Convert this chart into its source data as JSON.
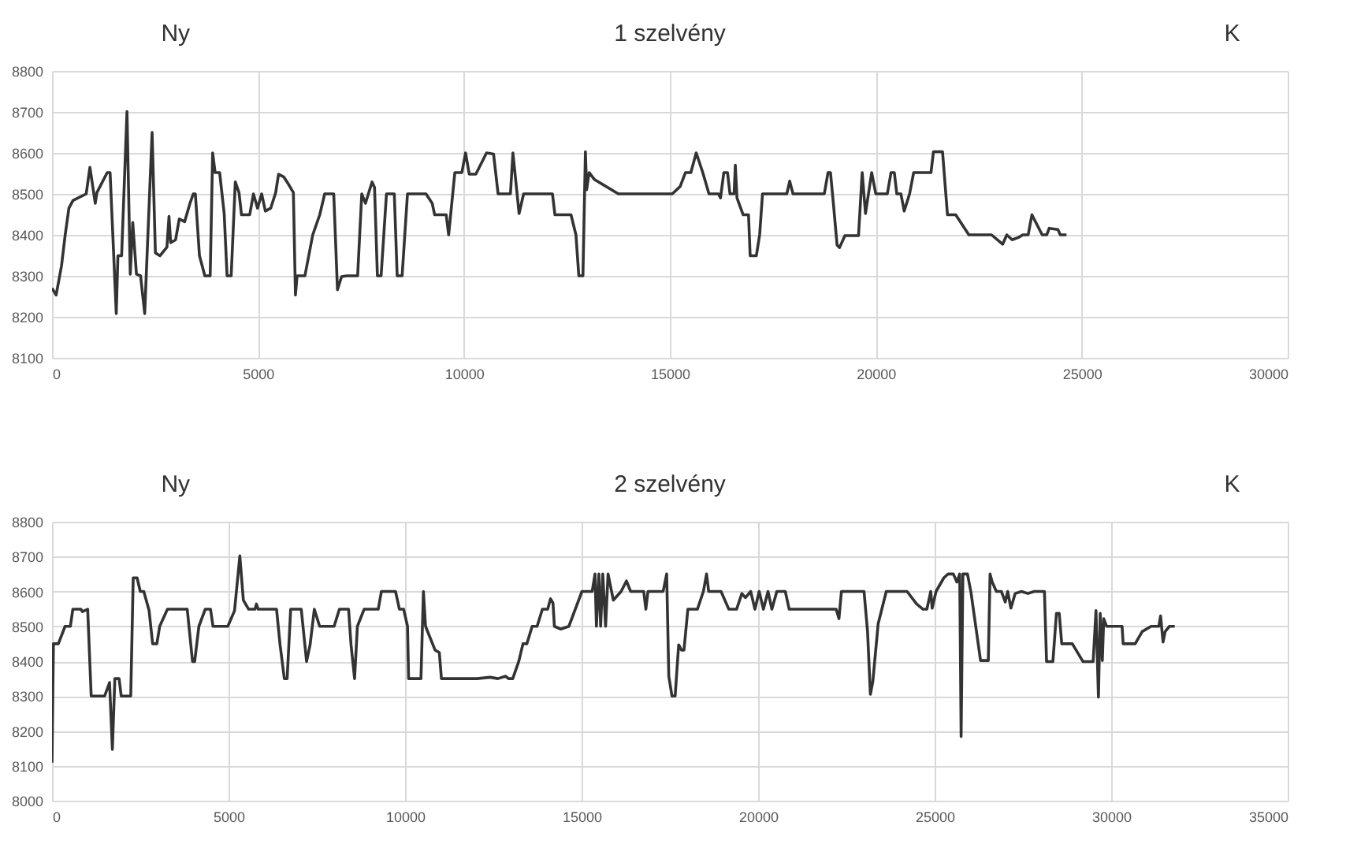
{
  "chart_data": [
    {
      "type": "line",
      "title": "1 szelvény",
      "annotations": [
        "Ny",
        "K"
      ],
      "color": "#333333",
      "grid": true,
      "xlim": [
        0,
        30000
      ],
      "xticks": [
        0,
        5000,
        10000,
        15000,
        20000,
        25000,
        30000
      ],
      "ylim": [
        8100,
        8800
      ],
      "yticks": [
        8100,
        8200,
        8300,
        8400,
        8500,
        8600,
        8700,
        8800
      ],
      "x": [
        0,
        100,
        230,
        320,
        410,
        510,
        830,
        920,
        1050,
        1090,
        1340,
        1410,
        1560,
        1600,
        1690,
        1820,
        1900,
        1960,
        2050,
        2150,
        2250,
        2430,
        2510,
        2620,
        2790,
        2840,
        2880,
        3000,
        3090,
        3220,
        3350,
        3430,
        3480,
        3580,
        3710,
        3840,
        3900,
        3960,
        4070,
        4180,
        4250,
        4350,
        4450,
        4540,
        4600,
        4800,
        4890,
        4990,
        5090,
        5180,
        5310,
        5430,
        5500,
        5630,
        5750,
        5860,
        5910,
        5950,
        6140,
        6330,
        6500,
        6620,
        6840,
        6930,
        7030,
        7160,
        7420,
        7520,
        7610,
        7770,
        7830,
        7900,
        7990,
        8120,
        8310,
        8380,
        8500,
        8630,
        9080,
        9230,
        9290,
        9570,
        9630,
        9780,
        9950,
        10040,
        10130,
        10290,
        10550,
        10720,
        10830,
        11130,
        11190,
        11340,
        11450,
        12150,
        12210,
        12600,
        12720,
        12790,
        12890,
        12950,
        12980,
        13040,
        13170,
        13750,
        15060,
        15250,
        15380,
        15510,
        15640,
        15800,
        15950,
        16180,
        16230,
        16310,
        16400,
        16460,
        16560,
        16590,
        16630,
        16780,
        16910,
        16950,
        17100,
        17180,
        17250,
        17840,
        17910,
        17990,
        18750,
        18840,
        18900,
        18970,
        19060,
        19120,
        19250,
        19580,
        19670,
        19750,
        19900,
        20000,
        20280,
        20370,
        20450,
        20510,
        20610,
        20690,
        20820,
        20920,
        21340,
        21400,
        21620,
        21740,
        21940,
        22260,
        22810,
        23080,
        23180,
        23310,
        23470,
        23570,
        23700,
        23790,
        24040,
        24150,
        24210,
        24420,
        24480,
        24630
      ],
      "values": [
        8270,
        8253,
        8324,
        8400,
        8465,
        8484,
        8500,
        8565,
        8477,
        8503,
        8552,
        8552,
        8208,
        8349,
        8349,
        8701,
        8304,
        8430,
        8304,
        8300,
        8208,
        8650,
        8356,
        8349,
        8370,
        8445,
        8381,
        8388,
        8439,
        8432,
        8477,
        8500,
        8500,
        8349,
        8300,
        8300,
        8600,
        8552,
        8552,
        8452,
        8300,
        8300,
        8529,
        8503,
        8449,
        8449,
        8500,
        8465,
        8500,
        8458,
        8465,
        8503,
        8548,
        8541,
        8522,
        8503,
        8253,
        8300,
        8300,
        8400,
        8449,
        8500,
        8500,
        8266,
        8298,
        8300,
        8300,
        8500,
        8477,
        8529,
        8516,
        8300,
        8300,
        8500,
        8500,
        8300,
        8300,
        8500,
        8500,
        8477,
        8449,
        8449,
        8400,
        8552,
        8552,
        8600,
        8548,
        8548,
        8600,
        8597,
        8500,
        8500,
        8600,
        8452,
        8500,
        8500,
        8449,
        8449,
        8400,
        8300,
        8300,
        8603,
        8510,
        8552,
        8535,
        8500,
        8500,
        8518,
        8552,
        8552,
        8600,
        8552,
        8500,
        8500,
        8490,
        8552,
        8552,
        8500,
        8500,
        8570,
        8490,
        8449,
        8449,
        8349,
        8349,
        8400,
        8500,
        8500,
        8531,
        8500,
        8500,
        8552,
        8552,
        8477,
        8375,
        8369,
        8398,
        8398,
        8552,
        8452,
        8552,
        8500,
        8500,
        8552,
        8552,
        8500,
        8500,
        8458,
        8500,
        8552,
        8552,
        8603,
        8603,
        8449,
        8449,
        8400,
        8400,
        8377,
        8400,
        8388,
        8394,
        8400,
        8400,
        8449,
        8400,
        8400,
        8416,
        8413,
        8400,
        8400
      ]
    },
    {
      "type": "line",
      "title": "2 szelvény",
      "annotations": [
        "Ny",
        "K"
      ],
      "color": "#333333",
      "grid": true,
      "xlim": [
        0,
        35000
      ],
      "xticks": [
        0,
        5000,
        10000,
        15000,
        20000,
        25000,
        30000,
        35000
      ],
      "ylim": [
        8000,
        8800
      ],
      "yticks": [
        8000,
        8100,
        8200,
        8300,
        8400,
        8500,
        8600,
        8700,
        8800
      ],
      "x": [
        0,
        40,
        180,
        370,
        520,
        590,
        820,
        860,
        1010,
        1110,
        1490,
        1630,
        1710,
        1780,
        1900,
        1960,
        2230,
        2300,
        2410,
        2500,
        2600,
        2750,
        2850,
        2970,
        3050,
        3270,
        3830,
        3980,
        4040,
        4160,
        4340,
        4490,
        4560,
        4980,
        5170,
        5320,
        5420,
        5570,
        5750,
        5790,
        5840,
        6360,
        6460,
        6580,
        6660,
        6760,
        7060,
        7210,
        7310,
        7430,
        7580,
        7990,
        8140,
        8400,
        8470,
        8570,
        8650,
        8840,
        9240,
        9330,
        9730,
        9840,
        9960,
        10070,
        10100,
        10450,
        10520,
        10580,
        10850,
        10970,
        11030,
        12040,
        12410,
        12630,
        12850,
        12930,
        13050,
        13220,
        13340,
        13450,
        13600,
        13740,
        13890,
        14040,
        14120,
        14190,
        14230,
        14410,
        14640,
        15010,
        15300,
        15380,
        15420,
        15490,
        15540,
        15600,
        15680,
        15750,
        15900,
        16120,
        16270,
        16390,
        16760,
        16820,
        16880,
        17310,
        17410,
        17470,
        17560,
        17650,
        17750,
        17830,
        17900,
        18010,
        18280,
        18450,
        18540,
        18600,
        18950,
        19170,
        19390,
        19540,
        19640,
        19790,
        19910,
        20030,
        20150,
        20280,
        20390,
        20530,
        20770,
        20880,
        21100,
        22210,
        22290,
        22360,
        23000,
        23100,
        23180,
        23250,
        23400,
        23630,
        24220,
        24490,
        24670,
        24780,
        24890,
        24930,
        25040,
        25260,
        25380,
        25530,
        25630,
        25710,
        25750,
        25800,
        25930,
        26030,
        26300,
        26520,
        26570,
        26630,
        26750,
        26890,
        27000,
        27070,
        27160,
        27280,
        27460,
        27640,
        27820,
        28110,
        28170,
        28350,
        28450,
        28530,
        28600,
        28900,
        29200,
        29490,
        29570,
        29640,
        29690,
        29750,
        29790,
        29870,
        30310,
        30340,
        30680,
        30880,
        31130,
        31350,
        31400,
        31470,
        31530,
        31650,
        31800
      ],
      "values": [
        8109,
        8450,
        8450,
        8500,
        8500,
        8549,
        8549,
        8542,
        8549,
        8300,
        8300,
        8339,
        8147,
        8350,
        8350,
        8300,
        8300,
        8639,
        8639,
        8600,
        8600,
        8545,
        8450,
        8450,
        8500,
        8549,
        8549,
        8399,
        8399,
        8500,
        8549,
        8549,
        8500,
        8500,
        8545,
        8702,
        8575,
        8549,
        8549,
        8564,
        8549,
        8549,
        8447,
        8350,
        8350,
        8549,
        8549,
        8399,
        8447,
        8549,
        8500,
        8500,
        8549,
        8549,
        8447,
        8350,
        8500,
        8549,
        8549,
        8600,
        8600,
        8549,
        8549,
        8500,
        8350,
        8350,
        8600,
        8500,
        8432,
        8425,
        8350,
        8350,
        8354,
        8350,
        8357,
        8350,
        8350,
        8399,
        8450,
        8450,
        8500,
        8500,
        8549,
        8549,
        8579,
        8567,
        8500,
        8492,
        8500,
        8600,
        8600,
        8650,
        8500,
        8650,
        8500,
        8650,
        8500,
        8650,
        8575,
        8600,
        8630,
        8600,
        8600,
        8549,
        8600,
        8600,
        8650,
        8357,
        8300,
        8300,
        8447,
        8432,
        8432,
        8549,
        8549,
        8600,
        8650,
        8600,
        8600,
        8549,
        8549,
        8594,
        8582,
        8600,
        8549,
        8600,
        8549,
        8600,
        8549,
        8600,
        8600,
        8549,
        8549,
        8549,
        8522,
        8600,
        8600,
        8485,
        8305,
        8342,
        8507,
        8600,
        8600,
        8564,
        8549,
        8549,
        8600,
        8552,
        8600,
        8639,
        8650,
        8650,
        8627,
        8650,
        8184,
        8650,
        8650,
        8597,
        8402,
        8402,
        8650,
        8627,
        8600,
        8600,
        8570,
        8600,
        8552,
        8594,
        8600,
        8594,
        8600,
        8600,
        8399,
        8399,
        8537,
        8537,
        8450,
        8450,
        8399,
        8399,
        8545,
        8297,
        8537,
        8402,
        8522,
        8500,
        8500,
        8450,
        8450,
        8485,
        8500,
        8500,
        8530,
        8455,
        8485,
        8500,
        8500
      ]
    }
  ]
}
